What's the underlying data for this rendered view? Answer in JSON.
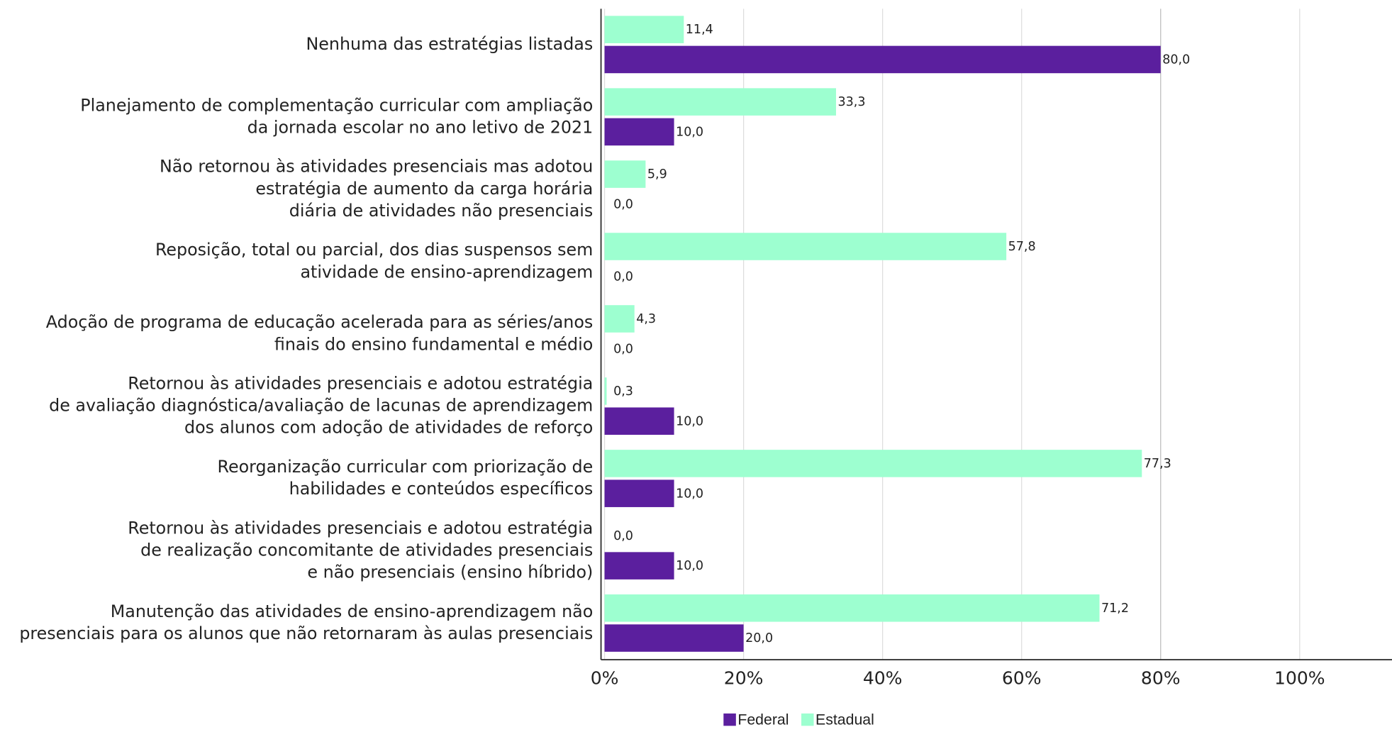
{
  "chart_data": {
    "type": "bar",
    "orientation": "horizontal",
    "categories": [
      [
        "Nenhuma das estratégias listadas"
      ],
      [
        "Planejamento de complementação curricular com ampliação",
        "da jornada escolar no ano letivo de 2021"
      ],
      [
        "Não retornou às atividades presenciais mas adotou",
        "estratégia de aumento da carga horária",
        "diária de atividades não presenciais"
      ],
      [
        "Reposição, total ou parcial, dos dias suspensos sem",
        "atividade de ensino-aprendizagem"
      ],
      [
        "Adoção de programa de educação acelerada para as séries/anos",
        "finais do ensino fundamental e médio"
      ],
      [
        "Retornou às atividades presenciais e adotou estratégia",
        "de avaliação diagnóstica/avaliação de lacunas de aprendizagem",
        "dos alunos com adoção de atividades de reforço"
      ],
      [
        "Reorganização curricular com priorização de",
        "habilidades e conteúdos específicos"
      ],
      [
        "Retornou às atividades presenciais e adotou estratégia",
        "de realização concomitante de atividades presenciais",
        "e não presenciais (ensino híbrido)"
      ],
      [
        "Manutenção das atividades de ensino-aprendizagem não",
        "presenciais para os alunos que não retornaram às aulas presenciais"
      ]
    ],
    "series": [
      {
        "name": "Estadual",
        "color": "#9dffd0",
        "values": [
          11.4,
          33.3,
          5.9,
          57.8,
          4.3,
          0.3,
          77.3,
          0.0,
          71.2
        ],
        "value_labels": [
          "11,4",
          "33,3",
          "5,9",
          "57,8",
          "4,3",
          "0,3",
          "77,3",
          "0,0",
          "71,2"
        ]
      },
      {
        "name": "Federal",
        "color": "#5b1f9e",
        "values": [
          80.0,
          10.0,
          0.0,
          0.0,
          0.0,
          10.0,
          10.0,
          10.0,
          20.0
        ],
        "value_labels": [
          "80,0",
          "10,0",
          "0,0",
          "0,0",
          "0,0",
          "10,0",
          "10,0",
          "10,0",
          "20,0"
        ]
      }
    ],
    "xlim": [
      0,
      113
    ],
    "xticks": [
      {
        "value": 0,
        "label": "0%"
      },
      {
        "value": 20,
        "label": "20%"
      },
      {
        "value": 40,
        "label": "40%"
      },
      {
        "value": 60,
        "label": "60%"
      },
      {
        "value": 80,
        "label": "80%"
      },
      {
        "value": 100,
        "label": "100%"
      }
    ],
    "grid": true,
    "legend": "bottom"
  }
}
